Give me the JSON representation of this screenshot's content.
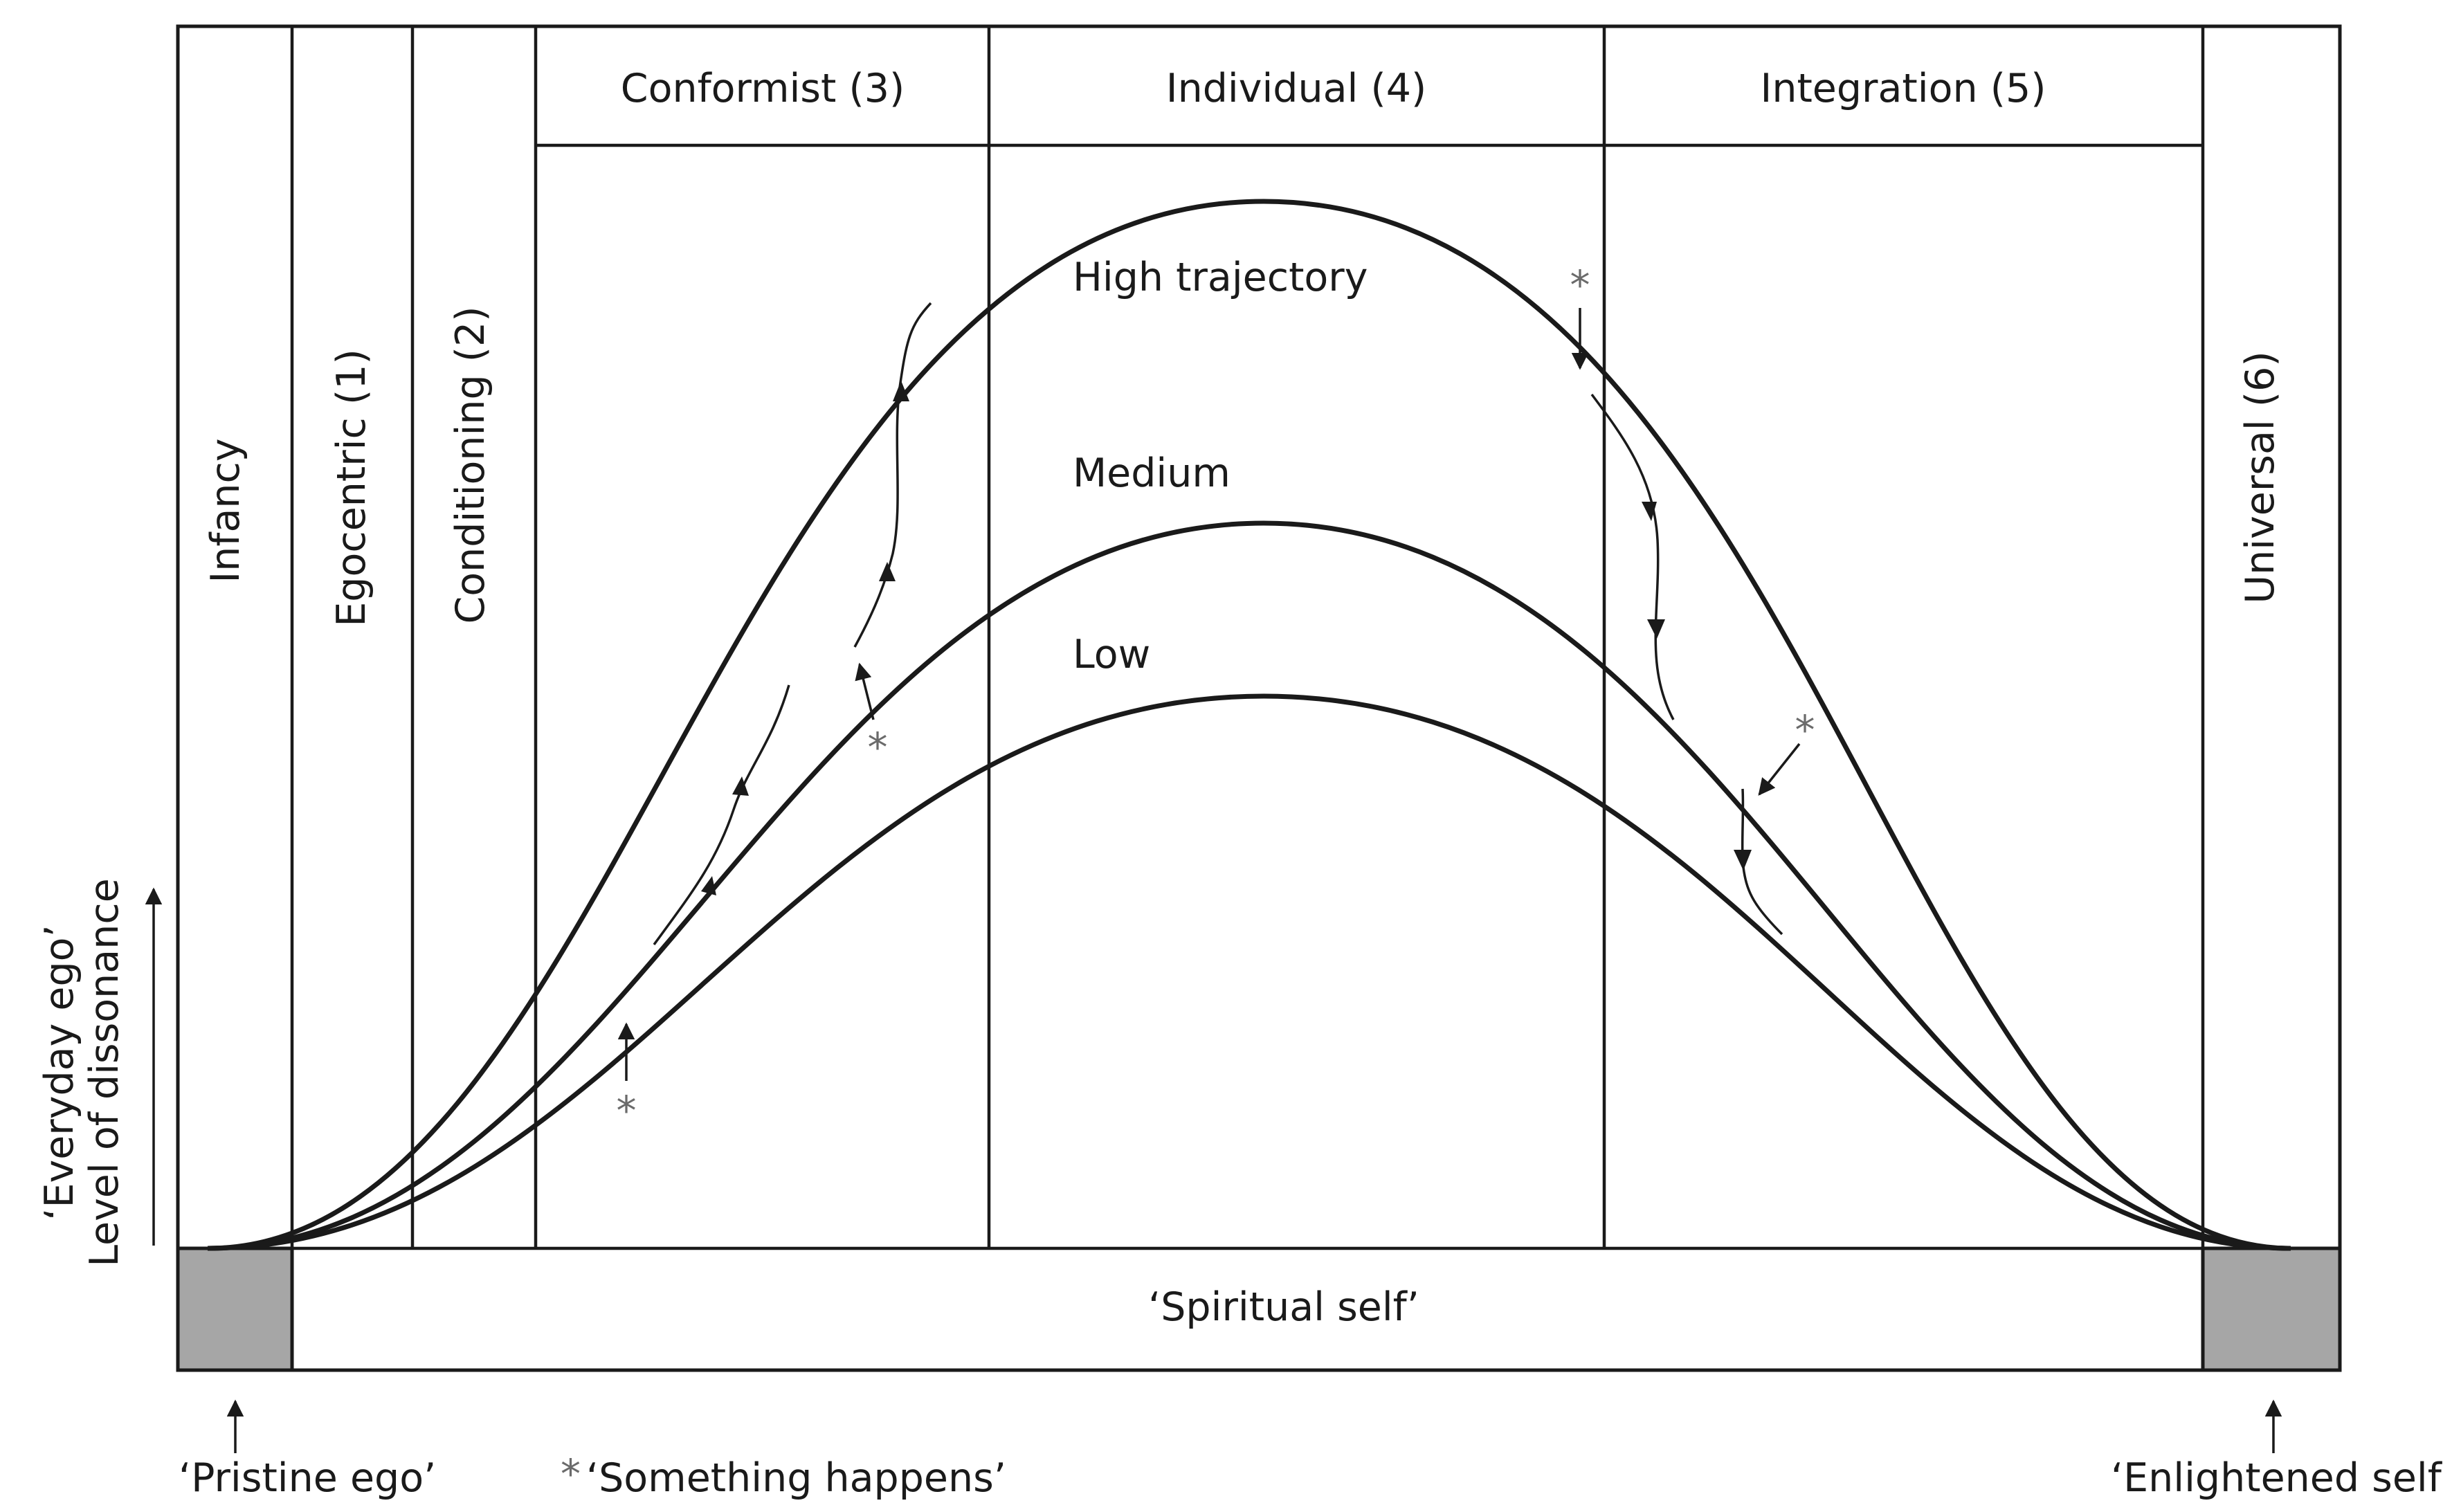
{
  "header": {
    "conformist": "Conformist (3)",
    "individual": "Individual (4)",
    "integration": "Integration (5)"
  },
  "stages": {
    "infancy": "Infancy",
    "egocentric": "Egocentric (1)",
    "conditioning": "Conditioning (2)",
    "universal": "Universal (6)"
  },
  "trajectories": {
    "high": "High trajectory",
    "medium": "Medium",
    "low": "Low"
  },
  "baseline": {
    "spiritual_self": "‘Spiritual self’"
  },
  "y_axis": {
    "line1": "‘Everyday ego’",
    "line2": "Level of dissonance"
  },
  "footer": {
    "pristine_ego": "‘Pristine ego’",
    "something_happens": "‘Something happens’",
    "enlightened_self": "‘Enlightened self’"
  },
  "markers": {
    "star": "*"
  },
  "colors": {
    "ink": "#1a1a1a",
    "gray_box": "#a6a6a6",
    "star": "#6b6b6b"
  }
}
